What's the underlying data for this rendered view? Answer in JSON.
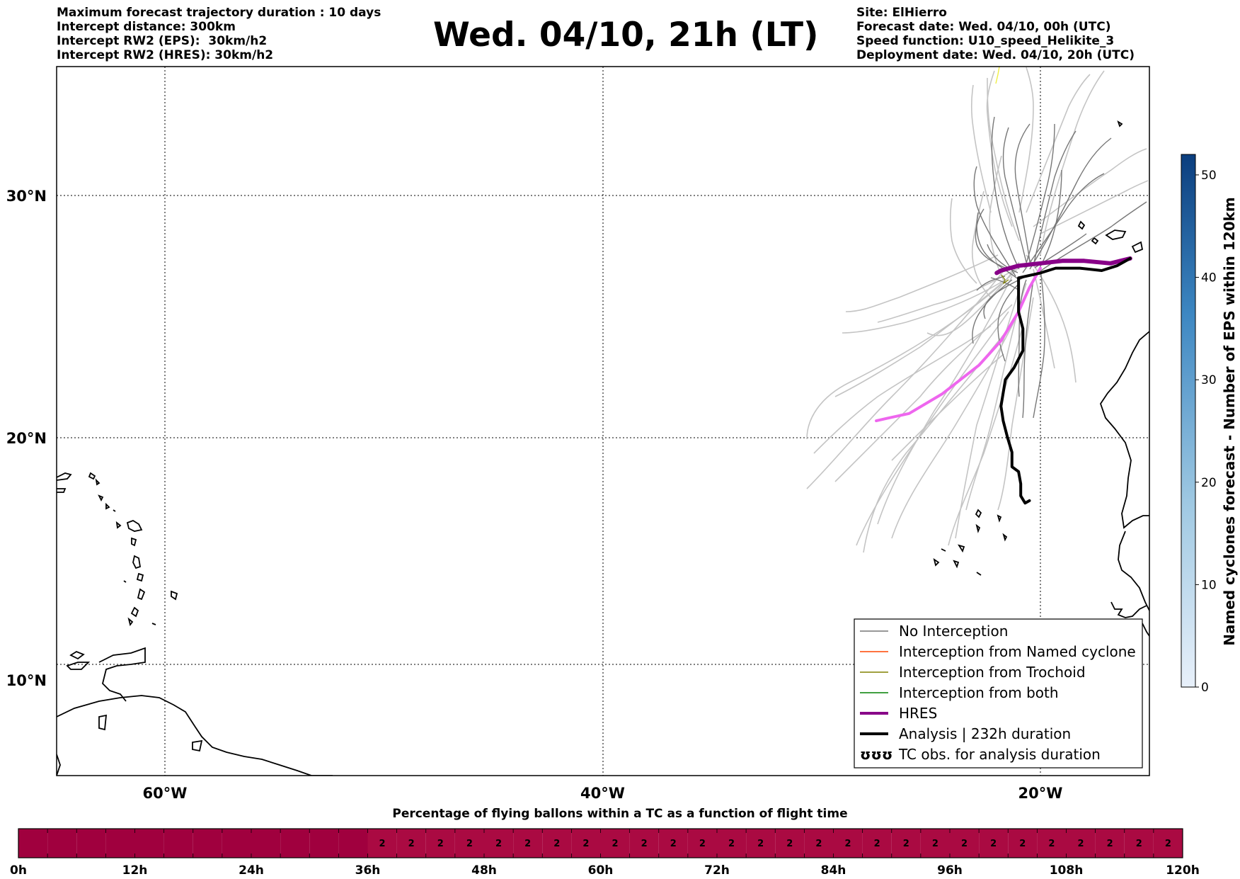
{
  "header": {
    "left_lines": [
      "Maximum forecast trajectory duration : 10 days",
      "Intercept distance: 300km",
      "Intercept RW2 (EPS):  30km/h2",
      "Intercept RW2 (HRES): 30km/h2"
    ],
    "title": "Wed. 04/10, 21h (LT)",
    "right_lines": [
      "Site: ElHierro",
      "Forecast date: Wed. 04/10, 00h (UTC)",
      "Speed function: U10_speed_Helikite_3",
      "Deployment date: Wed. 04/10, 20h (UTC)"
    ]
  },
  "colors": {
    "no_interception": "#777777",
    "named_cyclone": "#ff4500",
    "trochoid": "#808000",
    "both": "#008000",
    "hres": "#880088",
    "analysis": "#000000",
    "ensemble_light": "#c4c4c4",
    "hres_alt": "#ee66ee",
    "timeline_fill": "#a0003e"
  },
  "chart_data": {
    "type": "map",
    "lon_range": [
      -65,
      -15
    ],
    "lat_range": [
      5.4,
      34.7
    ],
    "lat_ticks": [
      {
        "value": 30,
        "label": "30°N"
      },
      {
        "value": 20,
        "label": "20°N"
      },
      {
        "value": 10,
        "label": "10°N"
      }
    ],
    "lon_ticks": [
      {
        "value": -60,
        "label": "60°W"
      },
      {
        "value": -40,
        "label": "40°W"
      },
      {
        "value": -20,
        "label": "20°W"
      }
    ],
    "grid": true,
    "series": [
      {
        "name": "Analysis | 232h duration",
        "points": [
          [
            -15.9,
            27.4
          ],
          [
            -16.5,
            27.1
          ],
          [
            -17.2,
            26.9
          ],
          [
            -18.2,
            27.0
          ],
          [
            -19.3,
            27.0
          ],
          [
            -20.0,
            26.8
          ],
          [
            -21.0,
            26.6
          ],
          [
            -21.0,
            26.2
          ],
          [
            -21.0,
            25.8
          ],
          [
            -21.0,
            25.2
          ],
          [
            -20.8,
            24.5
          ],
          [
            -20.8,
            23.6
          ],
          [
            -21.2,
            22.9
          ],
          [
            -21.6,
            22.4
          ],
          [
            -21.8,
            21.3
          ],
          [
            -21.7,
            20.7
          ],
          [
            -21.5,
            20.0
          ],
          [
            -21.3,
            19.4
          ],
          [
            -21.3,
            18.8
          ],
          [
            -21.0,
            18.6
          ],
          [
            -20.9,
            18.1
          ],
          [
            -20.9,
            17.6
          ],
          [
            -20.7,
            17.3
          ],
          [
            -20.5,
            17.4
          ]
        ]
      },
      {
        "name": "HRES",
        "points": [
          [
            -15.9,
            27.4
          ],
          [
            -16.8,
            27.2
          ],
          [
            -18.0,
            27.3
          ],
          [
            -19.0,
            27.3
          ],
          [
            -20.0,
            27.2
          ],
          [
            -21.0,
            27.1
          ],
          [
            -21.8,
            26.9
          ],
          [
            -22.0,
            26.8
          ]
        ]
      },
      {
        "name": "",
        "points": [
          [
            -20.0,
            27.0
          ],
          [
            -20.5,
            26.2
          ],
          [
            -21.0,
            25.2
          ],
          [
            -21.8,
            24.0
          ],
          [
            -22.8,
            23.0
          ],
          [
            -24.5,
            21.8
          ],
          [
            -26.0,
            21.0
          ],
          [
            -27.0,
            20.8
          ],
          [
            -27.5,
            20.7
          ]
        ]
      }
    ],
    "legend": {
      "placement": "lower-right",
      "entries": [
        {
          "label": "No Interception"
        },
        {
          "label": "Interception from Named cyclone"
        },
        {
          "label": "Interception from Trochoid"
        },
        {
          "label": "Interception from both"
        },
        {
          "label": "HRES"
        },
        {
          "label": "Analysis | 232h duration"
        },
        {
          "label": "TC obs. for analysis duration",
          "symbol": "ʊʊʊ"
        }
      ]
    },
    "colorbar": {
      "label": "Named cyclones forecast - Number of EPS within 120km",
      "range": [
        0,
        52
      ],
      "ticks": [
        0,
        10,
        20,
        30,
        40,
        50
      ]
    }
  },
  "timeline": {
    "title": "Percentage of flying ballons within a TC as a function of flight time",
    "tick_labels": [
      "0h",
      "12h",
      "24h",
      "36h",
      "48h",
      "60h",
      "72h",
      "84h",
      "96h",
      "108h",
      "120h"
    ],
    "cells": 40,
    "percentages": [
      "",
      "",
      "",
      "",
      "",
      "",
      "",
      "",
      "",
      "",
      "",
      "",
      "2",
      "2",
      "2",
      "2",
      "2",
      "2",
      "2",
      "2",
      "2",
      "2",
      "2",
      "2",
      "2",
      "2",
      "2",
      "2",
      "2",
      "2",
      "2",
      "2",
      "2",
      "2",
      "2",
      "2",
      "2",
      "2",
      "2",
      "2"
    ]
  }
}
